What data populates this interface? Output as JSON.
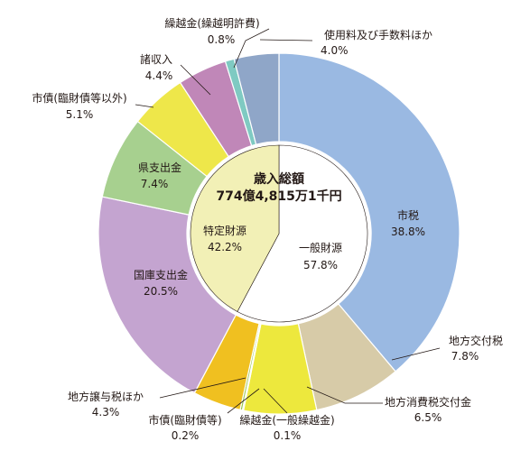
{
  "chart_data": {
    "type": "pie",
    "center": {
      "title": "歳入総額",
      "total": "774億4,815万1千円"
    },
    "slices": [
      {
        "name": "市税",
        "value": 38.8,
        "label": "38.8%",
        "color": "#9ab9e2"
      },
      {
        "name": "地方交付税",
        "value": 7.8,
        "label": "7.8%",
        "color": "#d7cba8"
      },
      {
        "name": "地方消費税交付金",
        "value": 6.5,
        "label": "6.5%",
        "color": "#ede83d"
      },
      {
        "name": "繰越金(一般繰越金)",
        "value": 0.1,
        "label": "0.1%",
        "color": "#63a33a"
      },
      {
        "name": "市債(臨財債等)",
        "value": 0.2,
        "label": "0.2%",
        "color": "#9bc650"
      },
      {
        "name": "地方譲与税ほか",
        "value": 4.3,
        "label": "4.3%",
        "color": "#f0c020"
      },
      {
        "name": "国庫支出金",
        "value": 20.5,
        "label": "20.5%",
        "color": "#c4a4d0"
      },
      {
        "name": "県支出金",
        "value": 7.4,
        "label": "7.4%",
        "color": "#a7d08f"
      },
      {
        "name": "市債(臨財債等以外)",
        "value": 5.1,
        "label": "5.1%",
        "color": "#eee74a"
      },
      {
        "name": "諸収入",
        "value": 4.4,
        "label": "4.4%",
        "color": "#c087b8"
      },
      {
        "name": "繰越金(繰越明許費)",
        "value": 0.8,
        "label": "0.8%",
        "color": "#7fcac2"
      },
      {
        "name": "使用料及び手数料ほか",
        "value": 4.0,
        "label": "4.0%",
        "color": "#8fa6c8"
      }
    ],
    "inner_groups": [
      {
        "name": "一般財源",
        "value": 57.8,
        "label": "57.8%",
        "color": "#ffffff"
      },
      {
        "name": "特定財源",
        "value": 42.2,
        "label": "42.2%",
        "color": "#f2f0b6"
      }
    ]
  }
}
